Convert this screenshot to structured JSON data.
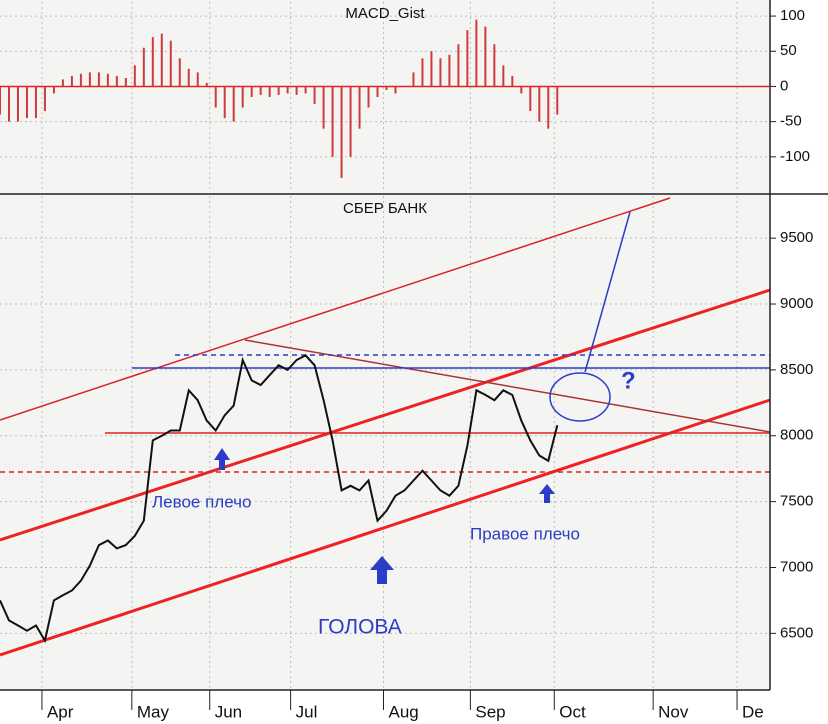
{
  "chart_data": [
    {
      "type": "bar",
      "title": "MACD_Gist",
      "color": "#d03a3a",
      "x": [
        0,
        3,
        6,
        9,
        12,
        15,
        18,
        21,
        24,
        27,
        30,
        33,
        36,
        39,
        42,
        45,
        48,
        51,
        54,
        57,
        60,
        63,
        66,
        69,
        72,
        75,
        78,
        81,
        84,
        87,
        90,
        93,
        96,
        99,
        102,
        105,
        108,
        111,
        114,
        117,
        120,
        123,
        126,
        129,
        132,
        135,
        138,
        141,
        144,
        147,
        150,
        153,
        156,
        159,
        162,
        165,
        168,
        171,
        174,
        177,
        180,
        183,
        186
      ],
      "values": [
        -40,
        -50,
        -50,
        -45,
        -45,
        -35,
        -10,
        10,
        15,
        18,
        20,
        20,
        18,
        15,
        12,
        30,
        55,
        70,
        75,
        65,
        40,
        25,
        20,
        5,
        -30,
        -45,
        -50,
        -30,
        -15,
        -12,
        -15,
        -12,
        -10,
        -12,
        -10,
        -25,
        -60,
        -100,
        -130,
        -100,
        -60,
        -30,
        -15,
        -5,
        -10,
        0,
        20,
        40,
        50,
        40,
        45,
        60,
        80,
        95,
        85,
        60,
        30,
        15,
        -10,
        -35,
        -50,
        -60,
        -40
      ],
      "xlim": [
        0,
        257
      ],
      "ylim": [
        -150,
        120
      ],
      "yticks": [
        100,
        50,
        0,
        -50,
        -100
      ],
      "grid": true
    },
    {
      "type": "line",
      "title": "СБЕР БАНК",
      "color": "#111111",
      "x": [
        0,
        3,
        6,
        9,
        12,
        15,
        18,
        21,
        24,
        27,
        30,
        33,
        36,
        39,
        42,
        45,
        48,
        51,
        54,
        57,
        60,
        63,
        66,
        69,
        72,
        75,
        78,
        81,
        84,
        87,
        90,
        93,
        96,
        99,
        102,
        105,
        108,
        111,
        114,
        117,
        120,
        123,
        126,
        129,
        132,
        135,
        138,
        141,
        144,
        147,
        150,
        153,
        156,
        159,
        162,
        165,
        168,
        171,
        174,
        177,
        180,
        183,
        186
      ],
      "values": [
        6750,
        6598,
        6560,
        6520,
        6560,
        6445,
        6750,
        6790,
        6825,
        6900,
        7015,
        7170,
        7205,
        7145,
        7170,
        7240,
        7355,
        7965,
        8000,
        8040,
        8040,
        8345,
        8270,
        8115,
        8040,
        8155,
        8230,
        8575,
        8420,
        8385,
        8460,
        8535,
        8500,
        8575,
        8610,
        8535,
        8270,
        7965,
        7585,
        7620,
        7585,
        7660,
        7355,
        7430,
        7545,
        7585,
        7660,
        7735,
        7660,
        7585,
        7545,
        7620,
        7925,
        8345,
        8310,
        8270,
        8345,
        8310,
        8115,
        7965,
        7850,
        7810,
        8080
      ],
      "xlim": [
        0,
        257
      ],
      "ylim": [
        6070,
        9820
      ],
      "yticks": [
        9500,
        9000,
        8500,
        8000,
        7500,
        7000,
        6500
      ],
      "xticks": [
        {
          "value": 14,
          "label": "Apr"
        },
        {
          "value": 44,
          "label": "May"
        },
        {
          "value": 70,
          "label": "Jun"
        },
        {
          "value": 97,
          "label": "Jul"
        },
        {
          "value": 128,
          "label": "Aug"
        },
        {
          "value": 157,
          "label": "Sep"
        },
        {
          "value": 185,
          "label": "Oct"
        },
        {
          "value": 218,
          "label": "Nov"
        },
        {
          "value": 246,
          "label": "De"
        }
      ],
      "grid": true,
      "annotations": [
        "Левое плечо",
        "Правое плечо",
        "ГОЛОВА",
        "?"
      ]
    }
  ]
}
